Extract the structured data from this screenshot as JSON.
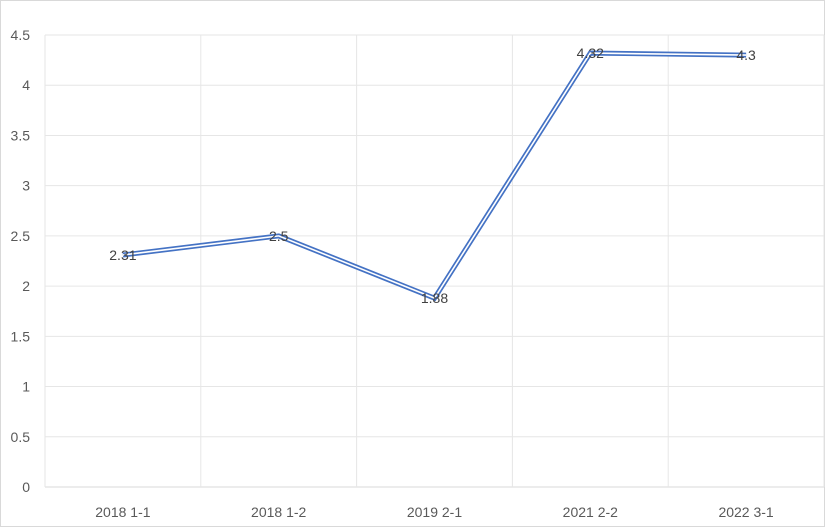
{
  "chart_data": {
    "type": "line",
    "title": "",
    "xlabel": "",
    "ylabel": "",
    "categories": [
      "2018 1-1",
      "2018 1-2",
      "2019 2-1",
      "2021 2-2",
      "2022 3-1"
    ],
    "series": [
      {
        "values": [
          2.31,
          2.5,
          1.88,
          4.32,
          4.3
        ]
      }
    ],
    "data_labels": [
      "2.31",
      "2.5",
      "1.88",
      "4.32",
      "4.3"
    ],
    "ylim": [
      0,
      4.5
    ],
    "yticks": [
      "0",
      "0.5",
      "1",
      "1.5",
      "2",
      "2.5",
      "3",
      "3.5",
      "4",
      "4.5"
    ],
    "grid": true,
    "legend": "none",
    "colors": {
      "line": "#4472C4",
      "grid": "#e6e6e6",
      "axis": "#d9d9d9"
    }
  }
}
